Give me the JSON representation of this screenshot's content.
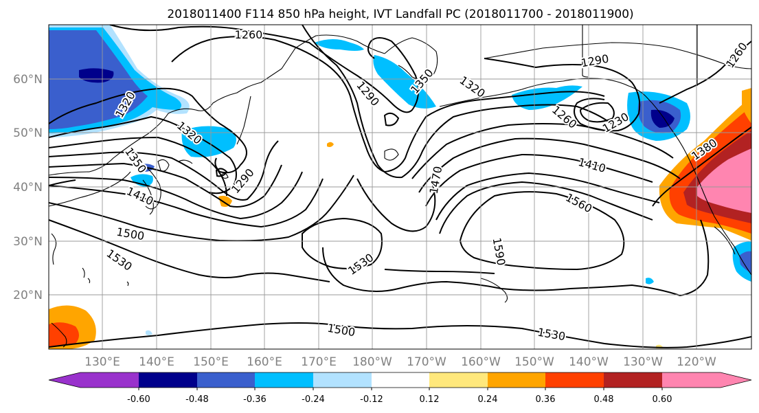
{
  "title": "2018011400 F114 850 hPa height, IVT Landfall PC (2018011700 - 2018011900)",
  "map": {
    "lon_labels": [
      "130°E",
      "140°E",
      "150°E",
      "160°E",
      "170°E",
      "180°W",
      "170°W",
      "160°W",
      "150°W",
      "140°W",
      "130°W",
      "120°W"
    ],
    "lat_labels": [
      "60°N",
      "50°N",
      "40°N",
      "30°N",
      "20°N"
    ],
    "contour_labels": [
      {
        "text": "1260",
        "pos": [
          362,
          50
        ],
        "rot": 0
      },
      {
        "text": "1290",
        "pos": [
          866,
          88
        ],
        "rot": -10
      },
      {
        "text": "1260",
        "pos": [
          1072,
          80
        ],
        "rot": -55
      },
      {
        "text": "1350",
        "pos": [
          614,
          118
        ],
        "rot": -50
      },
      {
        "text": "1290",
        "pos": [
          536,
          136
        ],
        "rot": 50
      },
      {
        "text": "1320",
        "pos": [
          688,
          126
        ],
        "rot": 35
      },
      {
        "text": "1320",
        "pos": [
          182,
          152
        ],
        "rot": -60
      },
      {
        "text": "1320",
        "pos": [
          276,
          193
        ],
        "rot": 40
      },
      {
        "text": "1260",
        "pos": [
          822,
          170
        ],
        "rot": 40
      },
      {
        "text": "1230",
        "pos": [
          896,
          178
        ],
        "rot": -30
      },
      {
        "text": "1350",
        "pos": [
          198,
          233
        ],
        "rot": 55
      },
      {
        "text": "1290",
        "pos": [
          353,
          263
        ],
        "rot": -50
      },
      {
        "text": "1380",
        "pos": [
          1025,
          217
        ],
        "rot": -35
      },
      {
        "text": "1410",
        "pos": [
          862,
          240
        ],
        "rot": 15
      },
      {
        "text": "1470",
        "pos": [
          634,
          262
        ],
        "rot": -80
      },
      {
        "text": "1410",
        "pos": [
          204,
          285
        ],
        "rot": 25
      },
      {
        "text": "1560",
        "pos": [
          843,
          295
        ],
        "rot": 28
      },
      {
        "text": "1500",
        "pos": [
          190,
          340
        ],
        "rot": 10
      },
      {
        "text": "1590",
        "pos": [
          727,
          366
        ],
        "rot": 80
      },
      {
        "text": "1530",
        "pos": [
          525,
          384
        ],
        "rot": -35
      },
      {
        "text": "1530",
        "pos": [
          174,
          378
        ],
        "rot": 35
      },
      {
        "text": "1500",
        "pos": [
          497,
          480
        ],
        "rot": 10
      },
      {
        "text": "1530",
        "pos": [
          803,
          486
        ],
        "rot": 10
      }
    ]
  },
  "colorbar": {
    "ticks": [
      "-0.60",
      "-0.48",
      "-0.36",
      "-0.24",
      "-0.12",
      "0.12",
      "0.24",
      "0.36",
      "0.48",
      "0.60"
    ],
    "under_color": "#9932cc",
    "over_color": "#ff85b0",
    "colors": [
      "#00008b",
      "#3a5fcd",
      "#00bfff",
      "#b2e2ff",
      "#ffffff",
      "#ffe87c",
      "#ffa500",
      "#ff4000",
      "#b22222"
    ]
  },
  "colors": {
    "neg_strong": "#00008b",
    "neg_med": "#3a5fcd",
    "neg_light": "#00bfff",
    "neg_pale": "#b2e2ff",
    "pos_pale": "#ffe87c",
    "pos_light": "#ffa500",
    "pos_med": "#ff4000",
    "pos_strong": "#b22222",
    "pos_extreme": "#ff85b0"
  }
}
